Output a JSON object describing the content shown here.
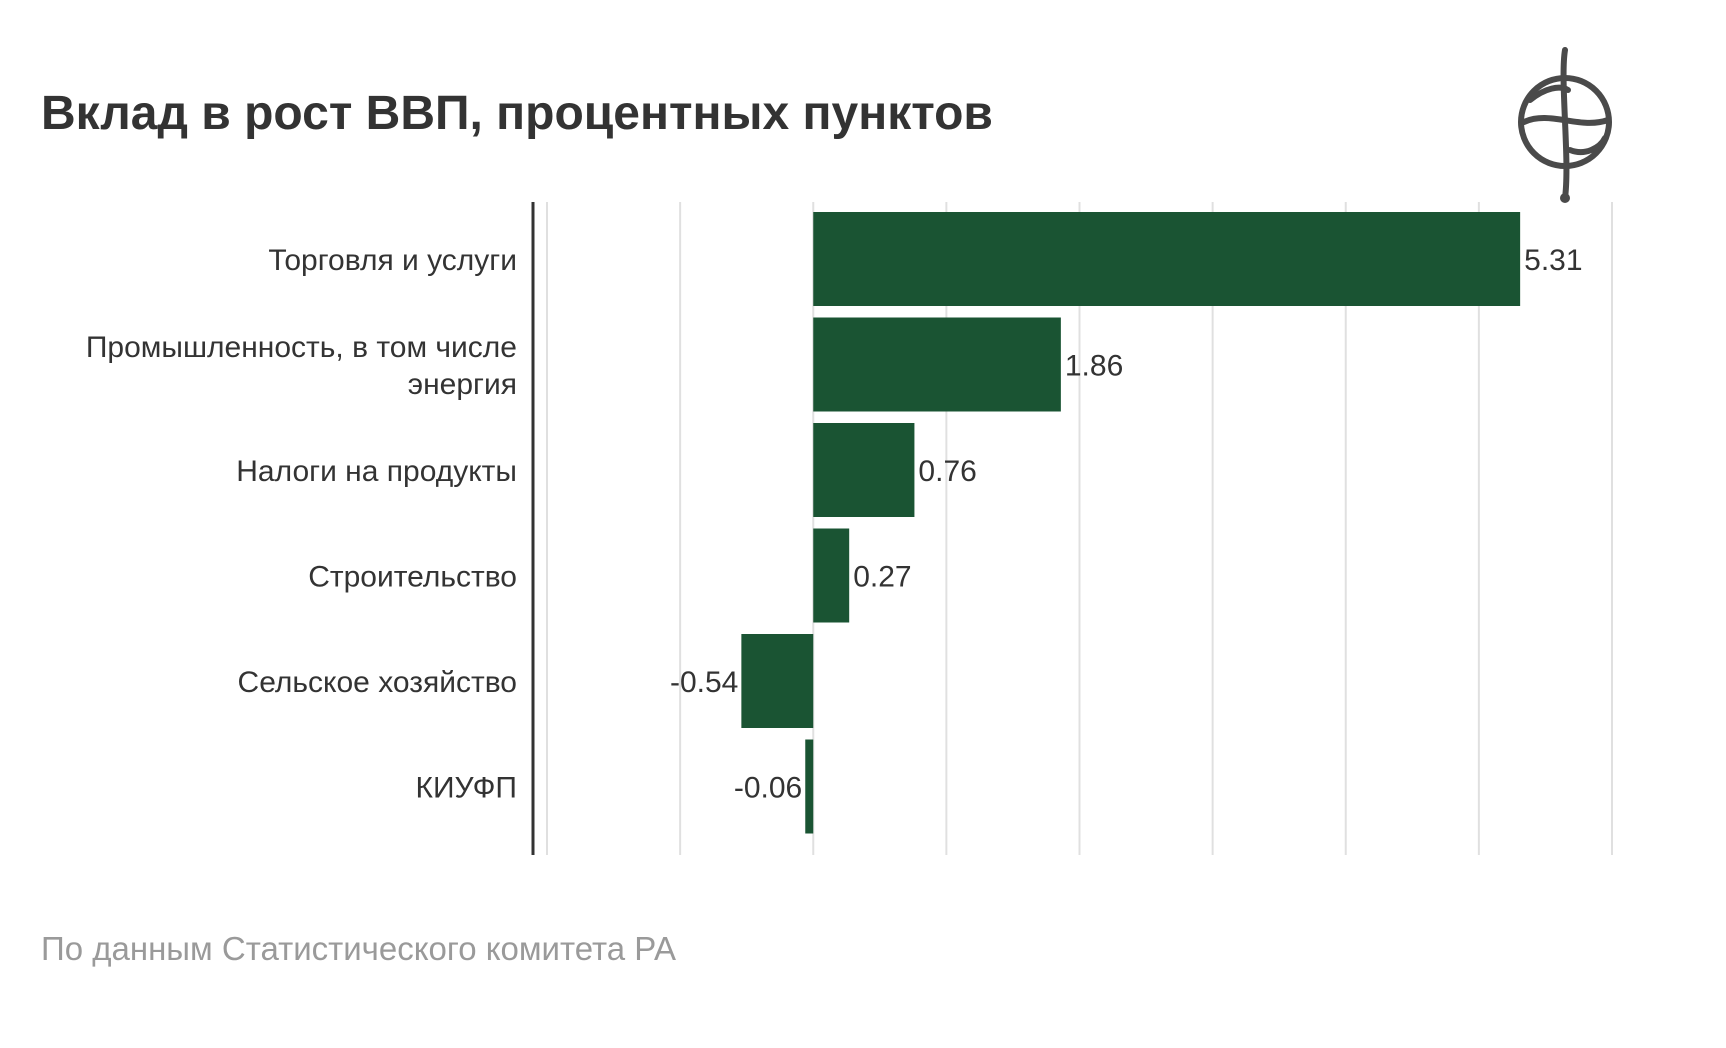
{
  "title": "Вклад в рост ВВП, процентных пунктов",
  "source": "По данным Статистического комитета РА",
  "logo_icon": "globe-logo-icon",
  "chart_data": {
    "type": "bar",
    "orientation": "horizontal",
    "categories": [
      [
        "Торговля и услуги"
      ],
      [
        "Промышленность, в том числе",
        "энергия"
      ],
      [
        "Налоги на продукты"
      ],
      [
        "Строительство"
      ],
      [
        "Сельское хозяйство"
      ],
      [
        "КИУФП"
      ]
    ],
    "values": [
      5.31,
      1.86,
      0.76,
      0.27,
      -0.54,
      -0.06
    ],
    "value_labels": [
      "5.31",
      "1.86",
      "0.76",
      "0.27",
      "-0.54",
      "-0.06"
    ],
    "xlim": [
      -2,
      6
    ],
    "grid_x": [
      -2,
      -1,
      0,
      1,
      2,
      3,
      4,
      5,
      6
    ],
    "bar_color": "#1a5433",
    "grid_color": "#e0e0e0",
    "axis_color": "#333333"
  }
}
